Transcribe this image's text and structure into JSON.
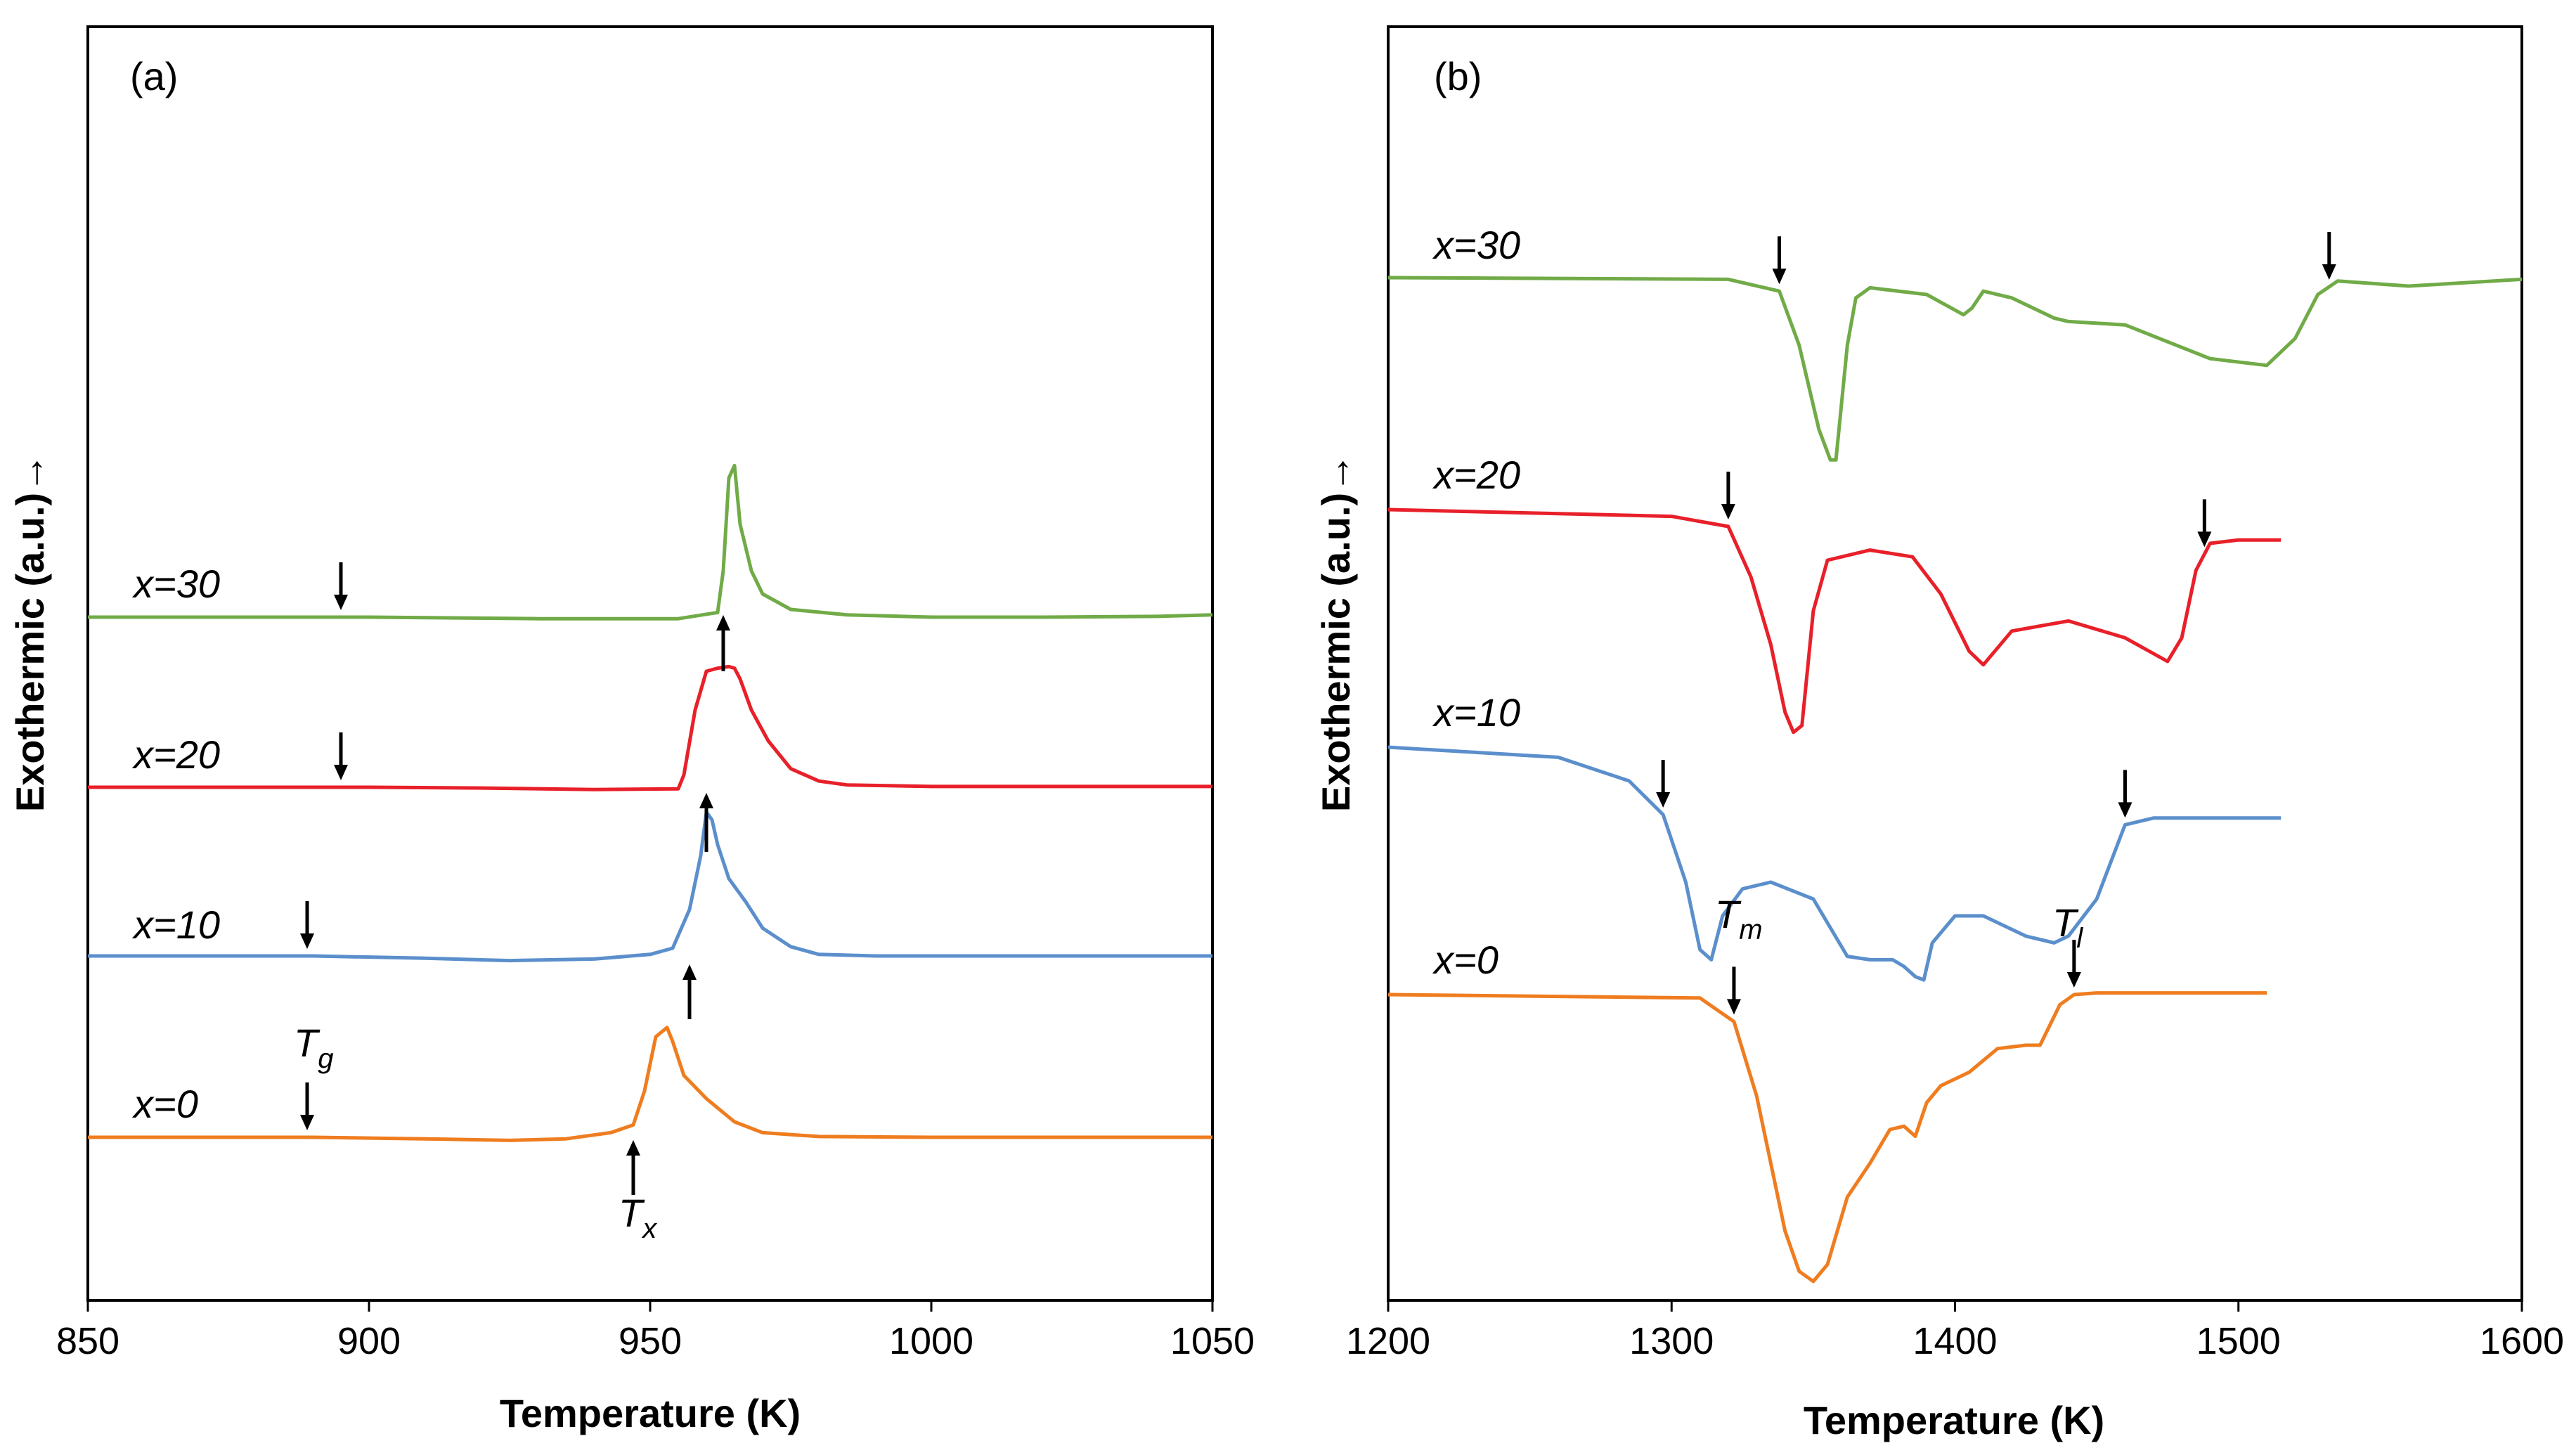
{
  "chart_data": [
    {
      "type": "line",
      "panel_label": "(a)",
      "xlabel": "Temperature (K)",
      "ylabel": "Exothermic (a.u.)→",
      "xlim": [
        850,
        1050
      ],
      "xticks": [
        "850",
        "900",
        "950",
        "1000",
        "1050"
      ],
      "y_ticks_shown": false,
      "grid": false,
      "series": [
        {
          "name": "x=30",
          "color": "#71ab48",
          "x": [
            850,
            900,
            930,
            955,
            962,
            963,
            964,
            965,
            966,
            968,
            970,
            975,
            985,
            1000,
            1020,
            1040,
            1050
          ],
          "y": [
            0,
            0,
            -0.1,
            -0.1,
            0.3,
            3,
            9,
            9.8,
            6,
            3,
            1.5,
            0.5,
            0.15,
            0,
            0,
            0.05,
            0.15
          ]
        },
        {
          "name": "x=20",
          "color": "#e8202a",
          "x": [
            850,
            900,
            920,
            940,
            955,
            956,
            958,
            960,
            962,
            964,
            965,
            966,
            968,
            971,
            975,
            980,
            985,
            1000,
            1020,
            1050
          ],
          "y": [
            0,
            0,
            -0.05,
            -0.15,
            -0.1,
            0.8,
            5,
            7.5,
            7.7,
            7.8,
            7.7,
            7,
            5,
            3,
            1.2,
            0.4,
            0.15,
            0.05,
            0.05,
            0.05
          ]
        },
        {
          "name": "x=10",
          "color": "#5b8fcc",
          "x": [
            850,
            890,
            910,
            925,
            940,
            950,
            954,
            957,
            959,
            960,
            961,
            962,
            964,
            967,
            970,
            975,
            980,
            990,
            1020,
            1050
          ],
          "y": [
            0,
            0,
            -0.15,
            -0.3,
            -0.2,
            0.1,
            0.5,
            3,
            6.5,
            9.3,
            8.8,
            7.2,
            5,
            3.5,
            1.8,
            0.6,
            0.1,
            0,
            0,
            0
          ]
        },
        {
          "name": "x=0",
          "color": "#ef7d20",
          "x": [
            850,
            890,
            910,
            925,
            935,
            943,
            947,
            949,
            951,
            953,
            954,
            956,
            960,
            965,
            970,
            980,
            1000,
            1050
          ],
          "y": [
            0,
            0,
            -0.1,
            -0.2,
            -0.1,
            0.3,
            0.8,
            3,
            6.5,
            7.1,
            6.2,
            4,
            2.5,
            1,
            0.3,
            0.05,
            0,
            0
          ]
        }
      ],
      "annotations": [
        {
          "text": "T",
          "subscript": "g"
        },
        {
          "text": "T",
          "subscript": "x"
        }
      ]
    },
    {
      "type": "line",
      "panel_label": "(b)",
      "xlabel": "Temperature (K)",
      "ylabel": "Exothermic (a.u.)→",
      "xlim": [
        1200,
        1600
      ],
      "xticks": [
        "1200",
        "1300",
        "1400",
        "1500",
        "1600"
      ],
      "y_ticks_shown": false,
      "grid": false,
      "series": [
        {
          "name": "x=30",
          "color": "#71ab48",
          "x": [
            1200,
            1320,
            1338,
            1345,
            1352,
            1356,
            1358,
            1362,
            1365,
            1370,
            1390,
            1403,
            1406,
            1410,
            1420,
            1435,
            1440,
            1460,
            1490,
            1510,
            1520,
            1528,
            1535,
            1560,
            1600
          ],
          "y": [
            0,
            -0.05,
            -0.4,
            -2,
            -4.5,
            -5.4,
            -5.4,
            -2,
            -0.6,
            -0.3,
            -0.5,
            -1.1,
            -0.9,
            -0.4,
            -0.6,
            -1.2,
            -1.3,
            -1.4,
            -2.4,
            -2.6,
            -1.8,
            -0.5,
            -0.1,
            -0.25,
            -0.05
          ]
        },
        {
          "name": "x=20",
          "color": "#e8202a",
          "x": [
            1200,
            1300,
            1320,
            1328,
            1335,
            1340,
            1343,
            1346,
            1350,
            1355,
            1370,
            1385,
            1395,
            1405,
            1410,
            1420,
            1440,
            1460,
            1475,
            1480,
            1485,
            1490,
            1500,
            1515
          ],
          "y": [
            0,
            -0.2,
            -0.5,
            -2,
            -4,
            -6,
            -6.6,
            -6.4,
            -3,
            -1.5,
            -1.2,
            -1.4,
            -2.5,
            -4.2,
            -4.6,
            -3.6,
            -3.3,
            -3.8,
            -4.5,
            -3.8,
            -1.8,
            -1,
            -0.9,
            -0.9
          ]
        },
        {
          "name": "x=10",
          "color": "#5b8fcc",
          "x": [
            1200,
            1260,
            1285,
            1297,
            1305,
            1310,
            1314,
            1318,
            1325,
            1335,
            1350,
            1362,
            1370,
            1378,
            1382,
            1386,
            1389,
            1392,
            1400,
            1410,
            1425,
            1435,
            1440,
            1450,
            1460,
            1470,
            1500,
            1515
          ],
          "y": [
            0,
            -0.3,
            -1,
            -2,
            -4,
            -6,
            -6.3,
            -5,
            -4.2,
            -4,
            -4.5,
            -6.2,
            -6.3,
            -6.3,
            -6.5,
            -6.8,
            -6.9,
            -5.8,
            -5,
            -5,
            -5.6,
            -5.8,
            -5.6,
            -4.5,
            -2.3,
            -2.1,
            -2.1,
            -2.1
          ]
        },
        {
          "name": "x=0",
          "color": "#ef7d20",
          "x": [
            1200,
            1310,
            1322,
            1330,
            1340,
            1345,
            1350,
            1355,
            1362,
            1370,
            1377,
            1382,
            1386,
            1390,
            1395,
            1405,
            1415,
            1425,
            1430,
            1437,
            1442,
            1450,
            1480,
            1510
          ],
          "y": [
            0,
            -0.1,
            -0.8,
            -3,
            -7,
            -8.2,
            -8.5,
            -8,
            -6,
            -5,
            -4,
            -3.9,
            -4.2,
            -3.2,
            -2.7,
            -2.3,
            -1.6,
            -1.5,
            -1.5,
            -0.3,
            0,
            0.05,
            0.05,
            0.05
          ]
        }
      ],
      "annotations": [
        {
          "text": "T",
          "subscript": "m"
        },
        {
          "text": "T",
          "subscript": "l"
        }
      ]
    }
  ]
}
